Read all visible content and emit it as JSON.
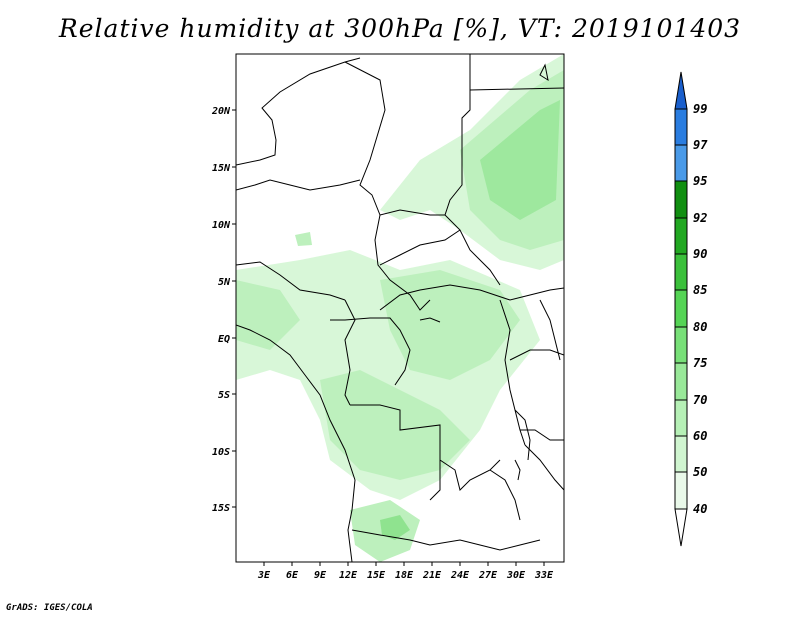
{
  "title": "Relative humidity at 300hPa [%], VT: 2019101403",
  "credit": "GrADS: IGES/COLA",
  "map": {
    "lat_labels": [
      "20N",
      "15N",
      "10N",
      "5N",
      "EQ",
      "5S",
      "10S",
      "15S"
    ],
    "lon_labels": [
      "3E",
      "6E",
      "9E",
      "12E",
      "15E",
      "18E",
      "21E",
      "24E",
      "27E",
      "30E",
      "33E"
    ]
  },
  "colorbar": {
    "levels": [
      "99",
      "97",
      "95",
      "92",
      "90",
      "85",
      "80",
      "75",
      "70",
      "60",
      "50",
      "40"
    ],
    "colors": [
      "#1a5fcc",
      "#2a7de0",
      "#4a9ae8",
      "#118f11",
      "#22a822",
      "#3bc03b",
      "#55d455",
      "#78e078",
      "#99e899",
      "#b6f0b6",
      "#d0f5d0",
      "#eaf9ea"
    ]
  }
}
